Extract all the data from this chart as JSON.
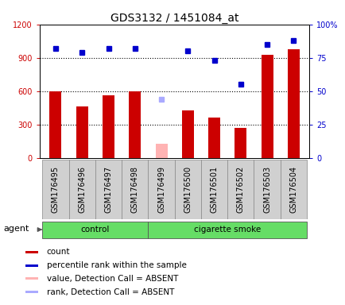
{
  "title": "GDS3132 / 1451084_at",
  "samples": [
    "GSM176495",
    "GSM176496",
    "GSM176497",
    "GSM176498",
    "GSM176499",
    "GSM176500",
    "GSM176501",
    "GSM176502",
    "GSM176503",
    "GSM176504"
  ],
  "counts": [
    600,
    460,
    565,
    600,
    null,
    430,
    360,
    270,
    930,
    975
  ],
  "absent_count": [
    null,
    null,
    null,
    null,
    130,
    null,
    null,
    null,
    null,
    null
  ],
  "percentile_ranks": [
    82,
    79,
    82,
    82,
    null,
    80,
    73,
    55,
    85,
    88
  ],
  "absent_rank": [
    null,
    null,
    null,
    null,
    44,
    null,
    null,
    null,
    null,
    null
  ],
  "groups": [
    "control",
    "control",
    "control",
    "control",
    "cigarette smoke",
    "cigarette smoke",
    "cigarette smoke",
    "cigarette smoke",
    "cigarette smoke",
    "cigarette smoke"
  ],
  "bar_color_present": "#cc0000",
  "bar_color_absent": "#ffb3b3",
  "dot_color_present": "#0000cc",
  "dot_color_absent": "#aaaaff",
  "ylim_left": [
    0,
    1200
  ],
  "ylim_right": [
    0,
    100
  ],
  "yticks_left": [
    0,
    300,
    600,
    900,
    1200
  ],
  "ytick_labels_left": [
    "0",
    "300",
    "600",
    "900",
    "1200"
  ],
  "yticks_right": [
    0,
    25,
    50,
    75,
    100
  ],
  "ytick_labels_right": [
    "0",
    "25",
    "50",
    "75",
    "100%"
  ],
  "legend_items": [
    {
      "label": "count",
      "color": "#cc0000"
    },
    {
      "label": "percentile rank within the sample",
      "color": "#0000cc"
    },
    {
      "label": "value, Detection Call = ABSENT",
      "color": "#ffb3b3"
    },
    {
      "label": "rank, Detection Call = ABSENT",
      "color": "#aaaaff"
    }
  ],
  "agent_label": "agent",
  "group_colors": {
    "control": "#66dd66",
    "cigarette smoke": "#66dd66"
  },
  "title_fontsize": 10,
  "tick_fontsize": 7,
  "legend_fontsize": 7.5,
  "bar_width": 0.45
}
